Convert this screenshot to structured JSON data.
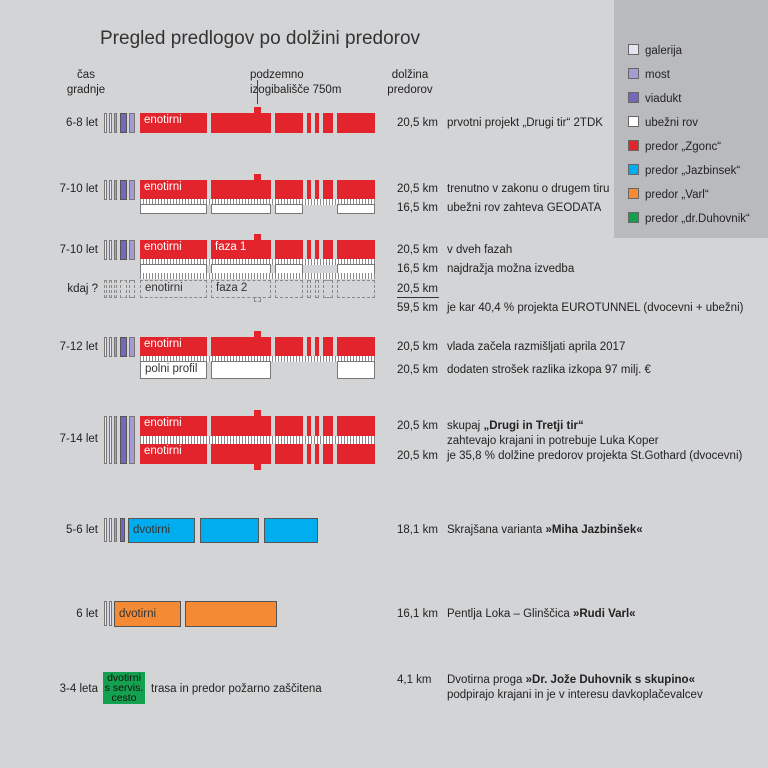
{
  "title": "Pregled predlogov po dolžini predorov",
  "headers": {
    "cas_line1": "čas",
    "cas_line2": "gradnje",
    "podzemno_line1": "podzemno",
    "podzemno_line2": "izogibališče 750m",
    "dolzina_line1": "dolžina",
    "dolzina_line2": "predorov"
  },
  "legend": [
    {
      "label": "galerija",
      "color": "#e6e4f2"
    },
    {
      "label": "most",
      "color": "#a39bd1"
    },
    {
      "label": "viadukt",
      "color": "#7766b9"
    },
    {
      "label": "ubežni rov",
      "color": "#ffffff"
    },
    {
      "label": "predor „Zgonc“",
      "color": "#e4242c"
    },
    {
      "label": "predor „Jazbinsek“",
      "color": "#00aeef"
    },
    {
      "label": "predor „Varl“",
      "color": "#f58a35"
    },
    {
      "label": "predor „dr.Duhovnik“",
      "color": "#14a14f"
    }
  ],
  "rows": {
    "r1": {
      "time": "6-8 let",
      "seg": "enotirni",
      "len": "20,5 km",
      "desc": "prvotni projekt „Drugi tir“ 2TDK"
    },
    "r2": {
      "time": "7-10 let",
      "seg": "enotirni",
      "len1": "20,5 km",
      "desc1": "trenutno v zakonu o drugem tiru",
      "len2": "16,5 km",
      "desc2": "ubežni rov zahteva GEODATA"
    },
    "r3": {
      "time": "7-10 let",
      "seg1": "enotirni",
      "seg2": "faza 1",
      "len1": "20,5 km",
      "desc1": "v dveh fazah",
      "len2": "16,5 km",
      "desc2": "najdražja možna izvedba",
      "kdaj": "kdaj ?",
      "seg3": "enotirni",
      "seg4": "faza 2",
      "len3": "20,5 km",
      "len4": "59,5 km",
      "desc4": "je kar 40,4 % projekta EUROTUNNEL (dvocevni + ubežni)"
    },
    "r4": {
      "time": "7-12 let",
      "seg": "enotirni",
      "seg2": "polni profil",
      "len1": "20,5 km",
      "desc1": "vlada začela razmišljati aprila 2017",
      "len2": "20,5 km",
      "desc2": "dodaten strošek razlika izkopa 97 milj. €"
    },
    "r5": {
      "time": "7-14 let",
      "seg1": "enotirni",
      "seg2": "enotirni",
      "len1": "20,5 km",
      "desc1a": "skupaj ",
      "desc1b": "„Drugi in Tretji tir“",
      "desc1c": "zahtevajo krajani in potrebuje Luka Koper",
      "len2": "20,5 km",
      "desc2": "je 35,8 %  dolžine predorov projekta St.Gothard (dvocevni)"
    },
    "r6": {
      "time": "5-6 let",
      "seg": "dvotirni",
      "len": "18,1 km",
      "desc_a": "Skrajšana varianta ",
      "desc_b": "»Miha Jazbinšek«"
    },
    "r7": {
      "time": "6 let",
      "seg": "dvotirni",
      "len": "16,1 km",
      "desc_a": "Pentlja Loka – Glinščica ",
      "desc_b": "»Rudi Varl«"
    },
    "r8": {
      "time": "3-4 leta",
      "green1": "dvotirni",
      "green2": "s servis.",
      "green3": "cesto",
      "trasa": "trasa in predor požarno zaščitena",
      "len": "4,1 km",
      "desc_a": "Dvotirna proga ",
      "desc_b": "»Dr. Jože Duhovnik s skupino«",
      "desc2": "podpirajo krajani in je v interesu davkoplačevalcev"
    }
  }
}
